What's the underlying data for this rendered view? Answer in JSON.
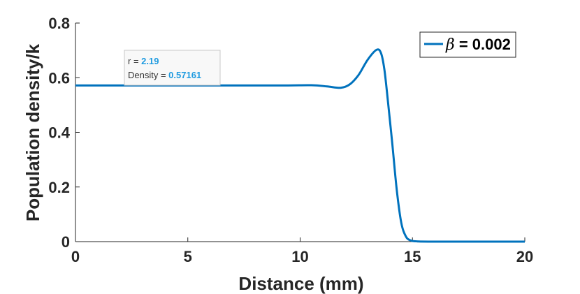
{
  "chart_data": {
    "type": "line",
    "xlabel": "Distance (mm)",
    "ylabel": "Population density/k",
    "xlim": [
      0,
      20
    ],
    "ylim": [
      0,
      0.8
    ],
    "xticks": [
      "0",
      "5",
      "10",
      "15",
      "20"
    ],
    "yticks": [
      "0",
      "0.2",
      "0.4",
      "0.6",
      "0.8"
    ],
    "grid": false,
    "legend_position": "top-right",
    "series": [
      {
        "name_symbol": "β",
        "name_rest": " = 0.002",
        "color": "#0072bd",
        "points": [
          [
            0,
            0.5716
          ],
          [
            5,
            0.5716
          ],
          [
            9,
            0.5716
          ],
          [
            10.5,
            0.5725
          ],
          [
            11.2,
            0.568
          ],
          [
            11.8,
            0.563
          ],
          [
            12.2,
            0.575
          ],
          [
            12.6,
            0.61
          ],
          [
            13.0,
            0.665
          ],
          [
            13.4,
            0.702
          ],
          [
            13.6,
            0.69
          ],
          [
            13.75,
            0.63
          ],
          [
            13.9,
            0.52
          ],
          [
            14.1,
            0.36
          ],
          [
            14.3,
            0.19
          ],
          [
            14.5,
            0.07
          ],
          [
            14.7,
            0.02
          ],
          [
            14.9,
            0.005
          ],
          [
            15.2,
            0.001
          ],
          [
            16,
            0.0
          ],
          [
            20,
            0.0
          ]
        ]
      }
    ],
    "datatip": {
      "r_label": "r = ",
      "r_value": "2.19",
      "density_label": "Density = ",
      "density_value": "0.57161",
      "x": 2.19,
      "y": 0.57161
    }
  }
}
